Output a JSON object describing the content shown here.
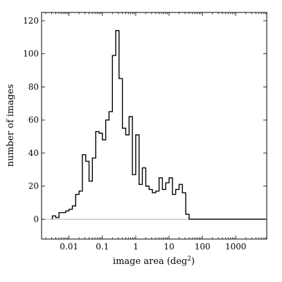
{
  "chart_data": {
    "type": "histogram",
    "x_scale": "log",
    "xlabel": "image area (deg",
    "xlabel_superscript": "2",
    "xlabel_suffix": ")",
    "ylabel": "number of images",
    "xlim": [
      0.0015,
      8500
    ],
    "ylim": [
      -12,
      125
    ],
    "grid": false,
    "zero_line_color": "#b3b3b3",
    "line_color": "#000000",
    "x_ticks": [
      0.01,
      0.1,
      1,
      10,
      100,
      1000
    ],
    "x_tick_labels": [
      "0.01",
      "0.1",
      "1",
      "10",
      "100",
      "1000"
    ],
    "y_ticks": [
      0,
      20,
      40,
      60,
      80,
      100,
      120
    ],
    "y_tick_labels": [
      "0",
      "20",
      "40",
      "60",
      "80",
      "100",
      "120"
    ],
    "bin_edges": [
      0.00316,
      0.00398,
      0.00501,
      0.00631,
      0.00794,
      0.01,
      0.0126,
      0.0158,
      0.02,
      0.0251,
      0.0316,
      0.0398,
      0.0501,
      0.0631,
      0.0794,
      0.1,
      0.126,
      0.158,
      0.2,
      0.251,
      0.316,
      0.398,
      0.501,
      0.631,
      0.794,
      1,
      1.26,
      1.58,
      2,
      2.51,
      3.16,
      3.98,
      5.01,
      6.31,
      7.94,
      10,
      12.6,
      15.8,
      20,
      25.1,
      31.6,
      39.8,
      50.1,
      63.1,
      79.4,
      100,
      126,
      158,
      200,
      251,
      316,
      398,
      501,
      631,
      794,
      1000,
      1259,
      1585,
      1995,
      2512,
      3162,
      3981,
      5012,
      6310,
      7943
    ],
    "counts": [
      2,
      1,
      4,
      4,
      5,
      6,
      8,
      15,
      17,
      39,
      35,
      23,
      37,
      53,
      52,
      48,
      60,
      65,
      99,
      114,
      85,
      55,
      51,
      62,
      27,
      51,
      21,
      31,
      20,
      18,
      16,
      17,
      25,
      18,
      22,
      25,
      15,
      18,
      21,
      16,
      3,
      0,
      0,
      0,
      0,
      0,
      0,
      0,
      0,
      0,
      0,
      0,
      0,
      0,
      0,
      0,
      0,
      0,
      0,
      0,
      0,
      0,
      0,
      0
    ]
  }
}
